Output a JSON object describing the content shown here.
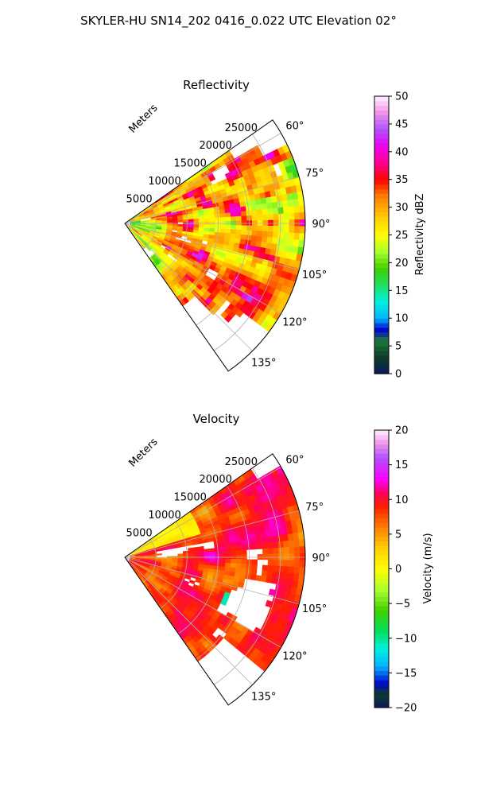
{
  "figure_title": "SKYLER-HU  SN14_202  0416_0.022 UTC Elevation 02°",
  "chart_data": [
    {
      "type": "heatmap",
      "subtype": "polar-sector-radar",
      "title": "Reflectivity",
      "range_axis_label": "Meters",
      "range_ticks": [
        5000,
        10000,
        15000,
        20000,
        25000
      ],
      "range_tick_labels": [
        "5000",
        "10000",
        "15000",
        "20000",
        "25000"
      ],
      "range_lim": [
        0,
        29000
      ],
      "azimuth_lim_deg": [
        55,
        145
      ],
      "azimuth_ticks_deg": [
        60,
        75,
        90,
        105,
        120,
        135
      ],
      "azimuth_tick_labels": [
        "60°",
        "75°",
        "90°",
        "105°",
        "120°",
        "135°"
      ],
      "grid": true,
      "colorbar": {
        "label": "Reflectivity dBZ",
        "min": 0,
        "max": 50,
        "ticks": [
          0,
          5,
          10,
          15,
          20,
          25,
          30,
          35,
          40,
          45,
          50
        ],
        "tick_labels": [
          "0",
          "5",
          "10",
          "15",
          "20",
          "25",
          "30",
          "35",
          "40",
          "45",
          "50"
        ]
      },
      "color_stops": [
        {
          "v": 0,
          "c": "#0a1a5c"
        },
        {
          "v": 3,
          "c": "#0b3d2a"
        },
        {
          "v": 6,
          "c": "#1f7a3a"
        },
        {
          "v": 8,
          "c": "#0000cc"
        },
        {
          "v": 10,
          "c": "#00b4ff"
        },
        {
          "v": 13,
          "c": "#00f0e0"
        },
        {
          "v": 16,
          "c": "#20e060"
        },
        {
          "v": 19,
          "c": "#40d000"
        },
        {
          "v": 22,
          "c": "#a8ff30"
        },
        {
          "v": 25,
          "c": "#ffff00"
        },
        {
          "v": 28,
          "c": "#ffd000"
        },
        {
          "v": 32,
          "c": "#ff8000"
        },
        {
          "v": 35,
          "c": "#ff0000"
        },
        {
          "v": 38,
          "c": "#ff0090"
        },
        {
          "v": 41,
          "c": "#ee00ee"
        },
        {
          "v": 44,
          "c": "#b050ff"
        },
        {
          "v": 47,
          "c": "#f090e8"
        },
        {
          "v": 50,
          "c": "#fff0ff"
        }
      ],
      "field_summary": "Widespread echoes 15–45 dBZ: greens/yellows near the radar and on the edges, reds and magenta cores 35–45 dBZ in the 8–25 km range between 60° and 125° azimuth."
    },
    {
      "type": "heatmap",
      "subtype": "polar-sector-radar",
      "title": "Velocity",
      "range_axis_label": "Meters",
      "range_ticks": [
        5000,
        10000,
        15000,
        20000,
        25000
      ],
      "range_tick_labels": [
        "5000",
        "10000",
        "15000",
        "20000",
        "25000"
      ],
      "range_lim": [
        0,
        29000
      ],
      "azimuth_lim_deg": [
        55,
        145
      ],
      "azimuth_ticks_deg": [
        60,
        75,
        90,
        105,
        120,
        135
      ],
      "azimuth_tick_labels": [
        "60°",
        "75°",
        "90°",
        "105°",
        "120°",
        "135°"
      ],
      "grid": true,
      "colorbar": {
        "label": "Velocity (m/s)",
        "min": -20,
        "max": 20,
        "ticks": [
          -20,
          -15,
          -10,
          -5,
          0,
          5,
          10,
          15,
          20
        ],
        "tick_labels": [
          "−20",
          "−15",
          "−10",
          "−5",
          "0",
          "5",
          "10",
          "15",
          "20"
        ]
      },
      "color_stops": [
        {
          "v": -20,
          "c": "#0a1a5c"
        },
        {
          "v": -18,
          "c": "#0b3d2a"
        },
        {
          "v": -16.5,
          "c": "#0000cc"
        },
        {
          "v": -14,
          "c": "#00b4ff"
        },
        {
          "v": -11.5,
          "c": "#00f0e0"
        },
        {
          "v": -9,
          "c": "#00e060"
        },
        {
          "v": -6,
          "c": "#40d000"
        },
        {
          "v": -3,
          "c": "#a8ff30"
        },
        {
          "v": 0,
          "c": "#ffff00"
        },
        {
          "v": 3,
          "c": "#ffd000"
        },
        {
          "v": 6,
          "c": "#ff8000"
        },
        {
          "v": 9,
          "c": "#ff2000"
        },
        {
          "v": 11,
          "c": "#ff0060"
        },
        {
          "v": 13,
          "c": "#ff00ff"
        },
        {
          "v": 16,
          "c": "#b050ff"
        },
        {
          "v": 18,
          "c": "#f090e8"
        },
        {
          "v": 20,
          "c": "#fff0ff"
        }
      ],
      "field_summary": "Mostly outbound 5–15 m/s (orange, red, magenta); yellow-green near 0 m/s close to the radar at the north edge; a small inbound cyan patch (about −10 m/s) near 112° azimuth, 18 km range."
    }
  ]
}
